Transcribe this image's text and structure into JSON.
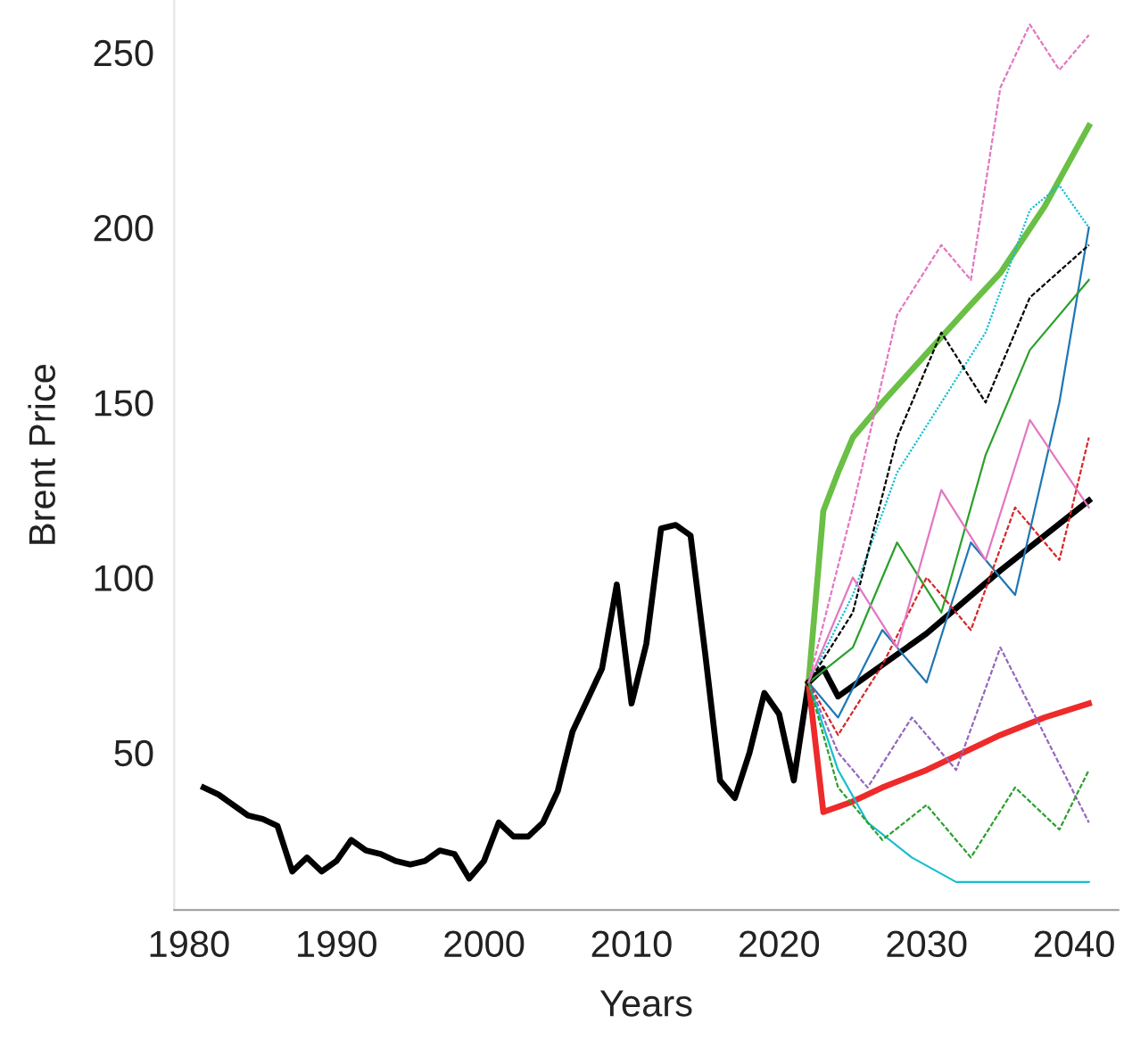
{
  "chart_data": {
    "type": "line",
    "xlabel": "Years",
    "ylabel": "Brent Price",
    "xlim": [
      1979,
      2043
    ],
    "xticks": [
      1980,
      1990,
      2000,
      2010,
      2020,
      2030,
      2040
    ],
    "ylim": [
      5,
      265
    ],
    "yticks": [
      50,
      100,
      150,
      200,
      250
    ],
    "grid": false,
    "legend": false,
    "series": [
      {
        "color": "#e377c2",
        "line_style": "dashed",
        "x": [
          2022,
          2025,
          2028,
          2031,
          2033,
          2035,
          2037,
          2039,
          2041
        ],
        "values": [
          70,
          120,
          175,
          195,
          185,
          240,
          258,
          245,
          255
        ]
      },
      {
        "color": "#17becf",
        "line_style": "dotted",
        "x": [
          2022,
          2025,
          2028,
          2031,
          2034,
          2037,
          2039,
          2041
        ],
        "values": [
          70,
          95,
          130,
          150,
          170,
          205,
          212,
          200
        ]
      },
      {
        "color": "#1f77b4",
        "line_style": "solid",
        "x": [
          2022,
          2024,
          2027,
          2030,
          2033,
          2036,
          2039,
          2041
        ],
        "values": [
          70,
          60,
          85,
          70,
          110,
          95,
          150,
          200
        ]
      },
      {
        "color": "#2ca02c",
        "line_style": "solid",
        "x": [
          2022,
          2025,
          2028,
          2031,
          2034,
          2037,
          2041
        ],
        "values": [
          70,
          80,
          110,
          90,
          135,
          165,
          185
        ]
      },
      {
        "color": "#9467bd",
        "line_style": "dashed",
        "x": [
          2022,
          2024,
          2026,
          2029,
          2032,
          2035,
          2038,
          2041
        ],
        "values": [
          70,
          50,
          40,
          60,
          45,
          80,
          55,
          30
        ]
      },
      {
        "color": "#000000",
        "line_style": "dashed",
        "x": [
          2022,
          2025,
          2028,
          2031,
          2034,
          2037,
          2041
        ],
        "values": [
          70,
          90,
          140,
          170,
          150,
          180,
          195
        ]
      },
      {
        "color": "#d62728",
        "line_style": "dashed",
        "x": [
          2022,
          2024,
          2027,
          2030,
          2033,
          2036,
          2039,
          2041
        ],
        "values": [
          70,
          55,
          75,
          100,
          85,
          120,
          105,
          140
        ]
      },
      {
        "color": "#17becf",
        "line_style": "solid",
        "x": [
          2022,
          2024,
          2026,
          2029,
          2032,
          2035,
          2038,
          2041
        ],
        "values": [
          70,
          45,
          30,
          20,
          13,
          13,
          13,
          13
        ]
      },
      {
        "color": "#e377c2",
        "line_style": "solid",
        "x": [
          2022,
          2025,
          2028,
          2031,
          2034,
          2037,
          2041
        ],
        "values": [
          70,
          100,
          80,
          125,
          105,
          145,
          120
        ]
      },
      {
        "color": "#2ca02c",
        "line_style": "dashed",
        "x": [
          2022,
          2024,
          2027,
          2030,
          2033,
          2036,
          2039,
          2041
        ],
        "values": [
          70,
          40,
          25,
          35,
          20,
          40,
          28,
          45
        ]
      },
      {
        "color": "#000000",
        "line_style": "solid",
        "x": [
          1981,
          1982,
          1983,
          1984,
          1985,
          1986,
          1987,
          1988,
          1989,
          1990,
          1991,
          1992,
          1993,
          1994,
          1995,
          1996,
          1997,
          1998,
          1999,
          2000,
          2001,
          2002,
          2003,
          2004,
          2005,
          2006,
          2007,
          2008,
          2009,
          2010,
          2011,
          2012,
          2013,
          2014,
          2015,
          2016,
          2017,
          2018,
          2019,
          2020,
          2021,
          2022
        ],
        "values": [
          40,
          38,
          35,
          32,
          31,
          29,
          16,
          20,
          16,
          19,
          25,
          22,
          21,
          19,
          18,
          19,
          22,
          21,
          14,
          19,
          30,
          26,
          26,
          30,
          39,
          56,
          65,
          74,
          98,
          64,
          81,
          114,
          115,
          112,
          78,
          42,
          37,
          50,
          67,
          61,
          42,
          70
        ]
      },
      {
        "color": "#6abf45",
        "line_style": "solid",
        "x": [
          2022,
          2023,
          2024,
          2025,
          2027,
          2030,
          2033,
          2035,
          2038,
          2041
        ],
        "values": [
          70,
          119,
          130,
          140,
          150,
          164,
          178,
          187,
          206,
          229
        ]
      },
      {
        "color": "#ee2a2a",
        "line_style": "solid",
        "x": [
          2022,
          2023,
          2025,
          2027,
          2030,
          2033,
          2035,
          2038,
          2041
        ],
        "values": [
          70,
          33,
          36,
          40,
          45,
          51,
          55,
          60,
          64
        ]
      },
      {
        "color": "#000000",
        "line_style": "solid",
        "x": [
          2022,
          2023,
          2024,
          2026,
          2030,
          2035,
          2041
        ],
        "values": [
          70,
          74,
          66,
          72,
          84,
          102,
          122
        ]
      }
    ]
  }
}
